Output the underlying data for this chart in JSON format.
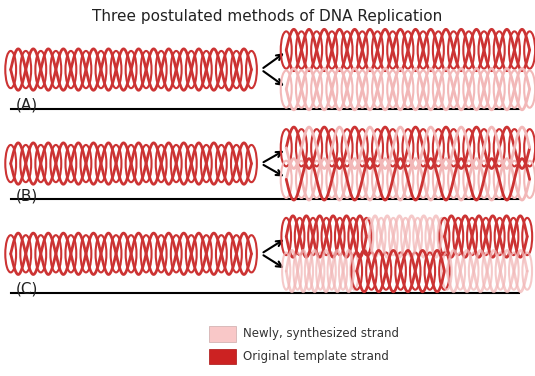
{
  "title": "Three postulated methods of DNA Replication",
  "title_fontsize": 11,
  "background_color": "#ffffff",
  "original_color": "#cc3333",
  "new_color": "#f2b8b8",
  "label_A": "(A)",
  "label_B": "(B)",
  "label_C": "(C)",
  "legend_new": "Newly, synthesized strand",
  "legend_orig": "Original template strand",
  "legend_new_color": "#f9c8c8",
  "legend_orig_color": "#cc2222"
}
